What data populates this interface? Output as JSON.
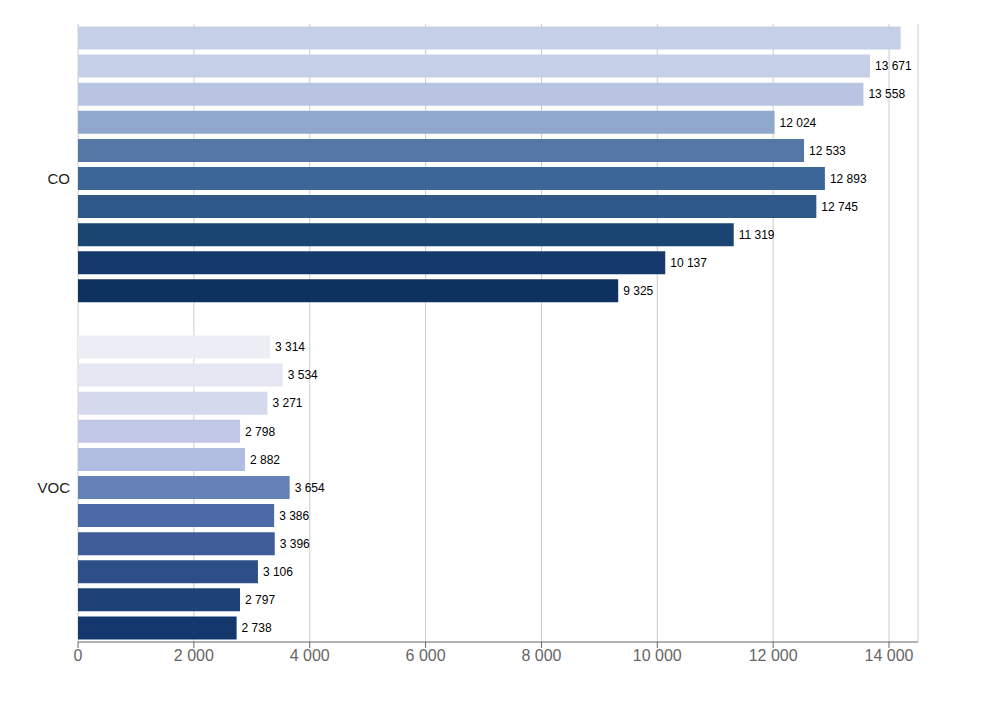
{
  "chart_data": {
    "type": "bar",
    "orientation": "horizontal",
    "data_labels": true,
    "grid": true,
    "series": [
      {
        "name": "CO",
        "values": [
          14200,
          13671,
          13558,
          12024,
          12533,
          12893,
          12745,
          11319,
          10137,
          9325
        ],
        "value_labels": [
          null,
          "13 671",
          "13 558",
          "12 024",
          "12 533",
          "12 893",
          "12 745",
          "11 319",
          "10 137",
          "9 325"
        ],
        "colors": [
          "#c5cfe8",
          "#c5cfe8",
          "#b8c4e2",
          "#8fa8cc",
          "#5577a8",
          "#3d6698",
          "#2e5888",
          "#1a4472",
          "#14396a",
          "#0e3260"
        ]
      },
      {
        "name": "VOC",
        "values": [
          3314,
          3534,
          3271,
          2798,
          2882,
          3654,
          3386,
          3396,
          3106,
          2797,
          2738
        ],
        "value_labels": [
          "3 314",
          "3 534",
          "3 271",
          "2 798",
          "2 882",
          "3 654",
          "3 386",
          "3 396",
          "3 106",
          "2 797",
          "2 738"
        ],
        "colors": [
          "#eceef6",
          "#e4e7f2",
          "#d4d9ed",
          "#c0c8e6",
          "#b0bce0",
          "#6680b8",
          "#4d6aa8",
          "#3d5c98",
          "#2e4e88",
          "#1e4278",
          "#14386e"
        ]
      }
    ],
    "xlim": [
      0,
      14500
    ],
    "xticks": [
      0,
      {
        "value": 2000,
        "label": "2 000"
      },
      {
        "value": 4000,
        "label": "4 000"
      },
      {
        "value": 6000,
        "label": "6 000"
      },
      {
        "value": 8000,
        "label": "8 000"
      },
      {
        "value": 10000,
        "label": "10 000"
      },
      {
        "value": 12000,
        "label": "12 000"
      },
      {
        "value": 14000,
        "label": "14 000"
      }
    ]
  }
}
